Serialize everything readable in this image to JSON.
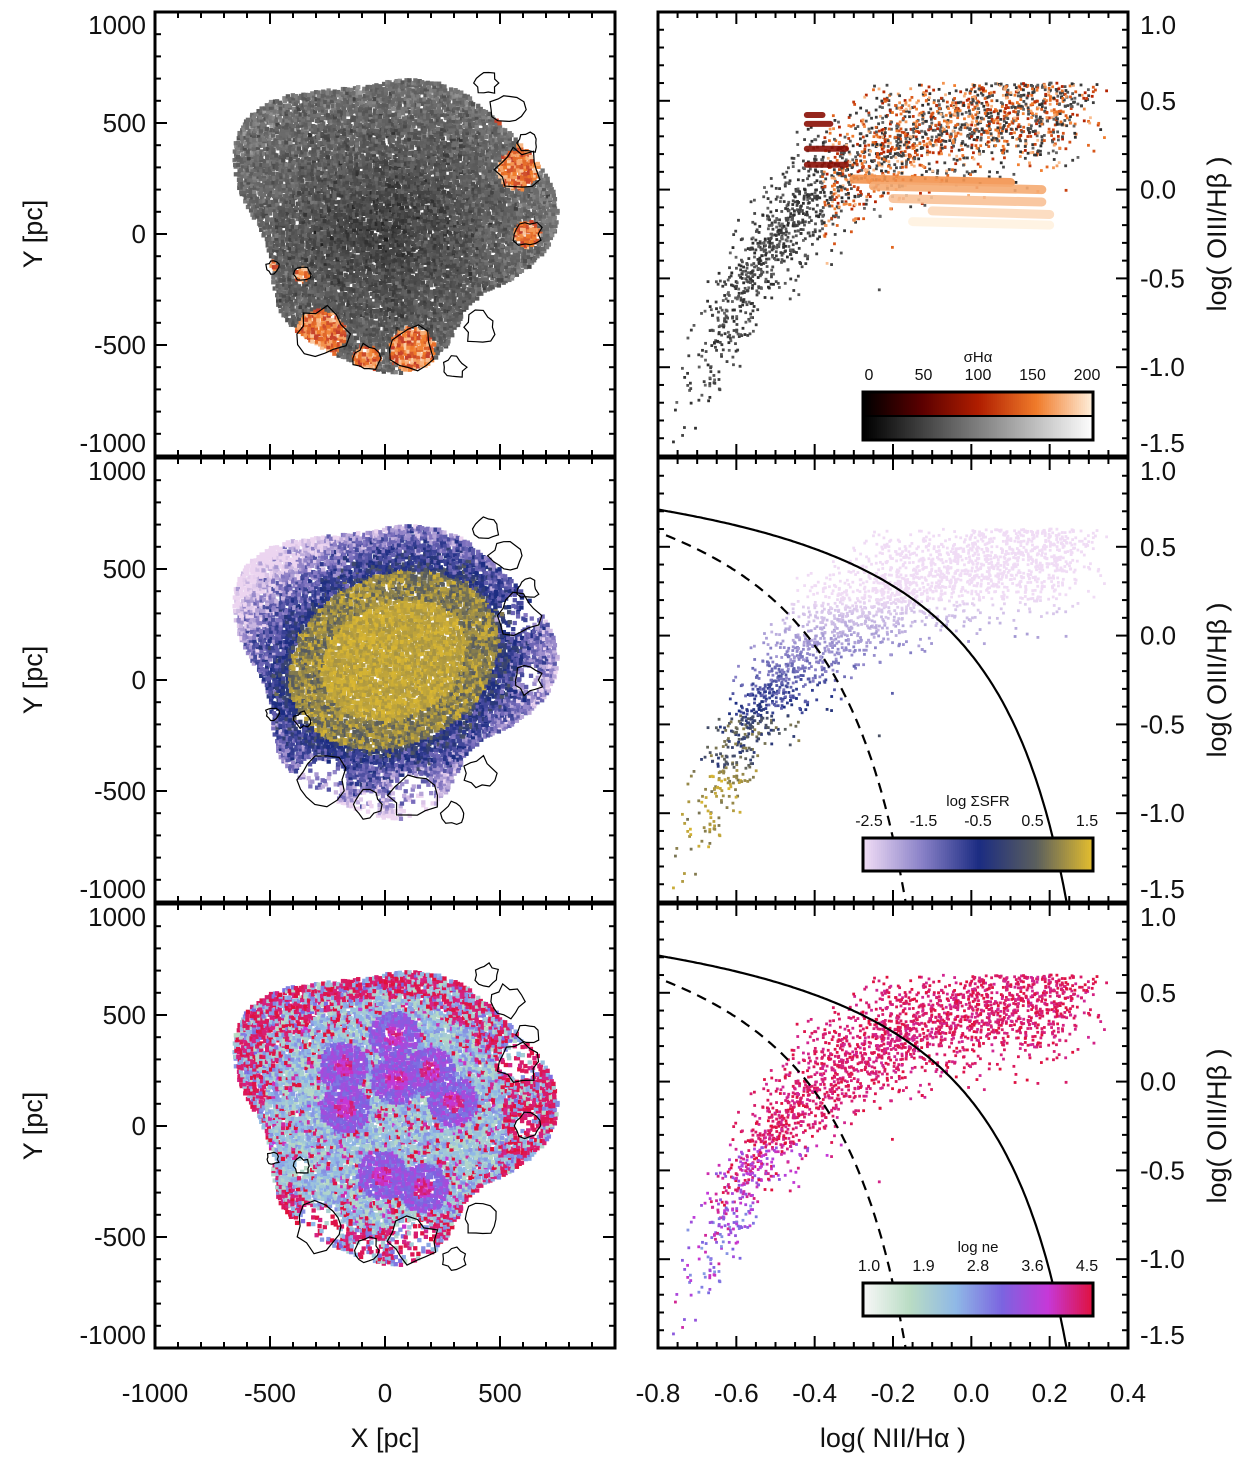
{
  "chart_data": [
    {
      "type": "scatter",
      "panel": "map-1",
      "xlim": [
        -1000,
        1000
      ],
      "ylim": [
        -1000,
        1000
      ],
      "xticks": [
        "-1000",
        "-500",
        "0",
        "500"
      ],
      "yticks": [
        "1000",
        "500",
        "0",
        "-500",
        "-1000"
      ],
      "xlabel": "X  [pc]",
      "ylabel": "Y  [pc]",
      "colormap": [
        "#000000",
        "#6e6e6e",
        "#ffffff"
      ],
      "highlight_colormap": [
        "#3a0000",
        "#c0392b",
        "#f07b2a",
        "#fff3e0"
      ],
      "regions_outlined": 12
    },
    {
      "type": "scatter",
      "panel": "bpt-1",
      "xlim": [
        -0.8,
        0.4
      ],
      "ylim": [
        -1.5,
        1.0
      ],
      "yticks": [
        "1.0",
        "0.5",
        "0.0",
        "-0.5",
        "-1.0",
        "-1.5"
      ],
      "ylabel": "log( OIII/Hβ )",
      "colorbar": {
        "title": "σHα",
        "ticks": [
          "0",
          "50",
          "100",
          "150",
          "200"
        ],
        "top_colors": [
          "#000000",
          "#5a0000",
          "#b01e00",
          "#f07b2a",
          "#fff2e0"
        ],
        "bottom_colors": [
          "#000000",
          "#555555",
          "#aaaaaa",
          "#ffffff"
        ]
      }
    },
    {
      "type": "scatter",
      "panel": "map-2",
      "xlim": [
        -1000,
        1000
      ],
      "ylim": [
        -1000,
        1000
      ],
      "xticks": [
        "-1000",
        "-500",
        "0",
        "500"
      ],
      "yticks": [
        "1000",
        "500",
        "0",
        "-500",
        "-1000"
      ],
      "ylabel": "Y  [pc]",
      "colormap": [
        "#ecd5f0",
        "#7b6fbd",
        "#1b2c82",
        "#5b5f5d",
        "#e7c02d"
      ]
    },
    {
      "type": "scatter",
      "panel": "bpt-2",
      "xlim": [
        -0.8,
        0.4
      ],
      "ylim": [
        -1.5,
        1.0
      ],
      "yticks": [
        "1.0",
        "0.5",
        "0.0",
        "-0.5",
        "-1.0",
        "-1.5"
      ],
      "ylabel": "log( OIII/Hβ )",
      "curves": [
        "Kewley 2001 (solid)",
        "Kauffmann 2003 (dashed)"
      ],
      "colorbar": {
        "title": "log ΣSFR",
        "ticks": [
          "-2.5",
          "-1.5",
          "-0.5",
          "0.5",
          "1.5"
        ],
        "colors": [
          "#f0dcf5",
          "#8a82c8",
          "#1b2c82",
          "#5b5f5d",
          "#e7c02d"
        ]
      }
    },
    {
      "type": "scatter",
      "panel": "map-3",
      "xlim": [
        -1000,
        1000
      ],
      "ylim": [
        -1000,
        1000
      ],
      "xticks": [
        "-1000",
        "-500",
        "0",
        "500"
      ],
      "yticks": [
        "1000",
        "500",
        "0",
        "-500",
        "-1000"
      ],
      "xlabel": "X  [pc]",
      "ylabel": "Y  [pc]",
      "colormap": [
        "#f5f5f5",
        "#b9dcc4",
        "#8fb8e6",
        "#7b64e0",
        "#c638d8",
        "#e0103a"
      ]
    },
    {
      "type": "scatter",
      "panel": "bpt-3",
      "xlim": [
        -0.8,
        0.4
      ],
      "ylim": [
        -1.5,
        1.0
      ],
      "xticks": [
        "-0.8",
        "-0.6",
        "-0.4",
        "-0.2",
        "0.0",
        "0.2",
        "0.4"
      ],
      "yticks": [
        "1.0",
        "0.5",
        "0.0",
        "-0.5",
        "-1.0",
        "-1.5"
      ],
      "xlabel": "log( NII/Hα )",
      "ylabel": "log( OIII/Hβ )",
      "curves": [
        "Kewley 2001 (solid)",
        "Kauffmann 2003 (dashed)"
      ],
      "colorbar": {
        "title": "log ne",
        "ticks": [
          "1.0",
          "1.9",
          "2.8",
          "3.6",
          "4.5"
        ],
        "colors": [
          "#f7f7f7",
          "#b9dcc4",
          "#8fb8e6",
          "#7b64e0",
          "#c638d8",
          "#e0103a"
        ]
      }
    }
  ],
  "labels": {
    "y_map": "Y  [pc]",
    "x_map": "X  [pc]",
    "y_bpt": "log( OIII/Hβ )",
    "x_bpt": "log( NII/Hα )",
    "cb1_title": "σHα",
    "cb2_title": "log ΣSFR",
    "cb3_title": "log ne"
  }
}
